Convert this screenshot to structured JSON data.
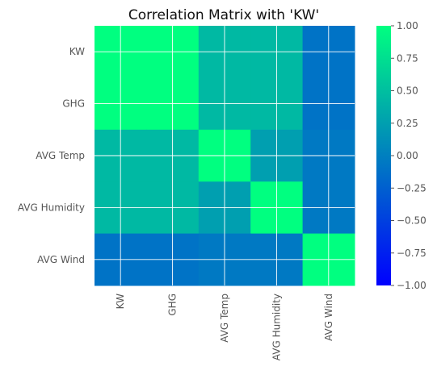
{
  "chart_data": {
    "type": "heatmap",
    "title": "Correlation Matrix with 'KW'",
    "row_labels": [
      "KW",
      "GHG",
      "AVG Temp",
      "AVG Humidity",
      "AVG Wind "
    ],
    "col_labels": [
      "KW",
      "GHG",
      "AVG Temp",
      "AVG Humidity",
      "AVG Wind"
    ],
    "values": [
      [
        1.0,
        1.0,
        0.45,
        0.45,
        -0.1
      ],
      [
        1.0,
        1.0,
        0.45,
        0.45,
        -0.1
      ],
      [
        0.45,
        0.45,
        1.0,
        0.25,
        -0.05
      ],
      [
        0.45,
        0.45,
        0.25,
        1.0,
        -0.05
      ],
      [
        -0.1,
        -0.1,
        -0.05,
        -0.05,
        1.0
      ]
    ],
    "colormap": "winter",
    "colorbar": {
      "range": [
        -1.0,
        1.0
      ],
      "ticks": [
        "1.00",
        "0.75",
        "0.50",
        "0.25",
        "0.00",
        "−0.25",
        "−0.50",
        "−0.75",
        "−1.00"
      ],
      "tick_values": [
        1.0,
        0.75,
        0.5,
        0.25,
        0.0,
        -0.25,
        -0.5,
        -0.75,
        -1.0
      ],
      "low_color": "#0000ff",
      "high_color": "#00ff80"
    },
    "grid": true,
    "legend": "colorbar-right"
  }
}
